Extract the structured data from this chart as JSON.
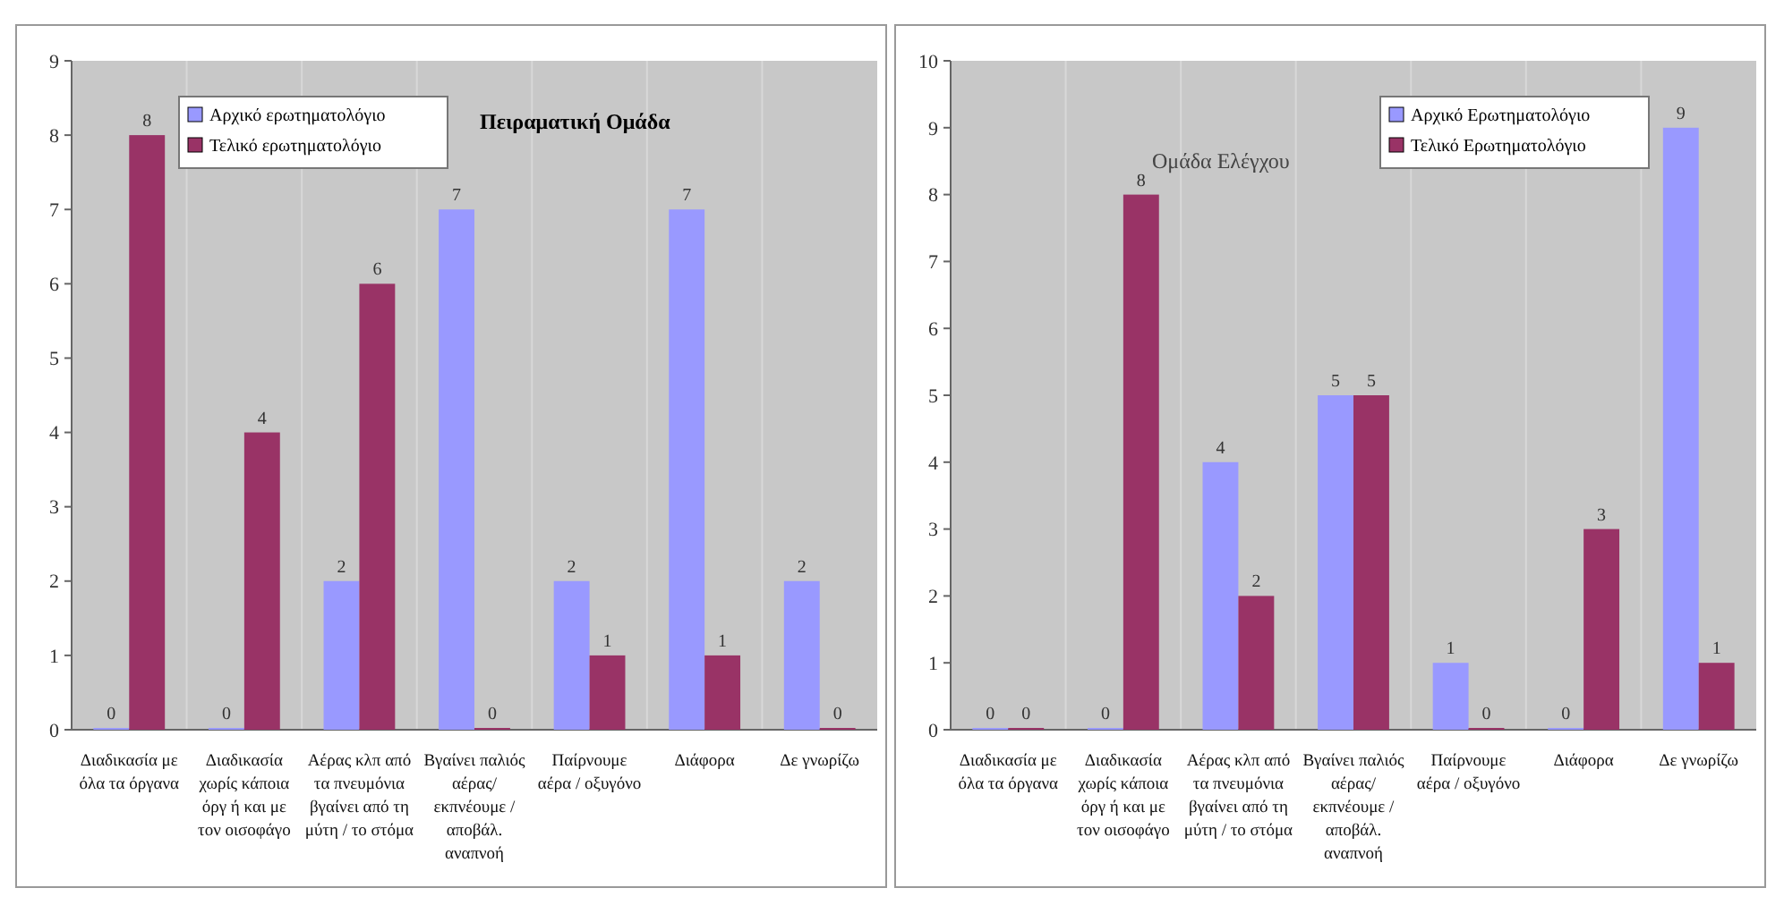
{
  "chart_data": [
    {
      "type": "bar",
      "title": "Πειραματική Ομάδα",
      "categories": [
        "Διαδικασία με\nόλα τα όργανα",
        "Διαδικασία\nχωρίς κάποια\nόργ  ή και με\nτον οισοφάγο",
        "Αέρας κλπ από\nτα πνευμόνια\nβγαίνει από τη\nμύτη / το στόμα",
        "Βγαίνει παλιός\nαέρας/\nεκπνέουμε /\nαποβάλ.\nαναπνοή",
        "Παίρνουμε\nαέρα / οξυγόνο",
        "Διάφορα",
        "Δε γνωρίζω"
      ],
      "series": [
        {
          "name": "Αρχικό ερωτηματολόγιο",
          "color": "#9999ff",
          "values": [
            0,
            0,
            2,
            7,
            2,
            7,
            2
          ]
        },
        {
          "name": "Τελικό ερωτηματολόγιο",
          "color": "#993366",
          "values": [
            8,
            4,
            6,
            0,
            1,
            1,
            0
          ]
        }
      ],
      "ylim": [
        0,
        9
      ],
      "yticks": [
        0,
        1,
        2,
        3,
        4,
        5,
        6,
        7,
        8,
        9
      ],
      "data_labels": true,
      "legend": "top left"
    },
    {
      "type": "bar",
      "title": "Ομάδα Ελέγχου",
      "categories": [
        "Διαδικασία με\nόλα τα όργανα",
        "Διαδικασία\nχωρίς κάποια\nόργ  ή και με\nτον οισοφάγο",
        "Αέρας κλπ από\nτα πνευμόνια\nβγαίνει από τη\nμύτη / το στόμα",
        "Βγαίνει παλιός\nαέρας/\nεκπνέουμε /\nαποβάλ.\nαναπνοή",
        "Παίρνουμε\nαέρα / οξυγόνο",
        "Διάφορα",
        "Δε γνωρίζω"
      ],
      "series": [
        {
          "name": "Αρχικό Ερωτηματολόγιο",
          "color": "#9999ff",
          "values": [
            0,
            0,
            4,
            5,
            1,
            0,
            9
          ]
        },
        {
          "name": "Τελικό Ερωτηματολόγιο",
          "color": "#993366",
          "values": [
            0,
            8,
            2,
            5,
            0,
            3,
            1
          ]
        }
      ],
      "ylim": [
        0,
        10
      ],
      "yticks": [
        0,
        1,
        2,
        3,
        4,
        5,
        6,
        7,
        8,
        9,
        10
      ],
      "data_labels": true,
      "legend": "top right"
    }
  ]
}
